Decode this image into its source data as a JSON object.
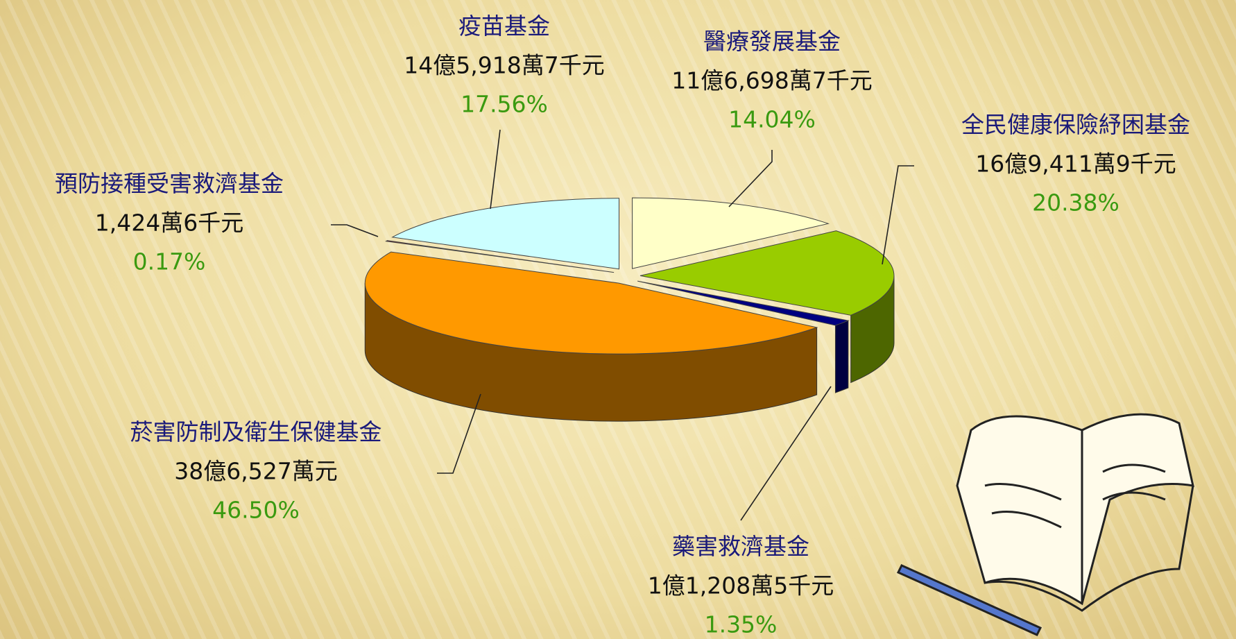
{
  "chart_data": {
    "type": "pie",
    "categories": [
      "醫療發展基金",
      "全民健康保險紓困基金",
      "藥害救濟基金",
      "菸害防制及衛生保健基金",
      "預防接種受害救濟基金",
      "疫苗基金"
    ],
    "amounts": [
      "11億6,698萬7千元",
      "16億9,411萬9千元",
      "1億1,208萬5千元",
      "38億6,527萬元",
      "1,424萬6千元",
      "14億5,918萬7千元"
    ],
    "values": [
      14.04,
      20.38,
      1.35,
      46.5,
      0.17,
      17.56
    ],
    "value_labels": [
      "14.04%",
      "20.38%",
      "1.35%",
      "46.50%",
      "0.17%",
      "17.56%"
    ],
    "colors": [
      "#ffffc8",
      "#99cc00",
      "#000080",
      "#ff9900",
      "#b00000",
      "#ccffff"
    ]
  }
}
